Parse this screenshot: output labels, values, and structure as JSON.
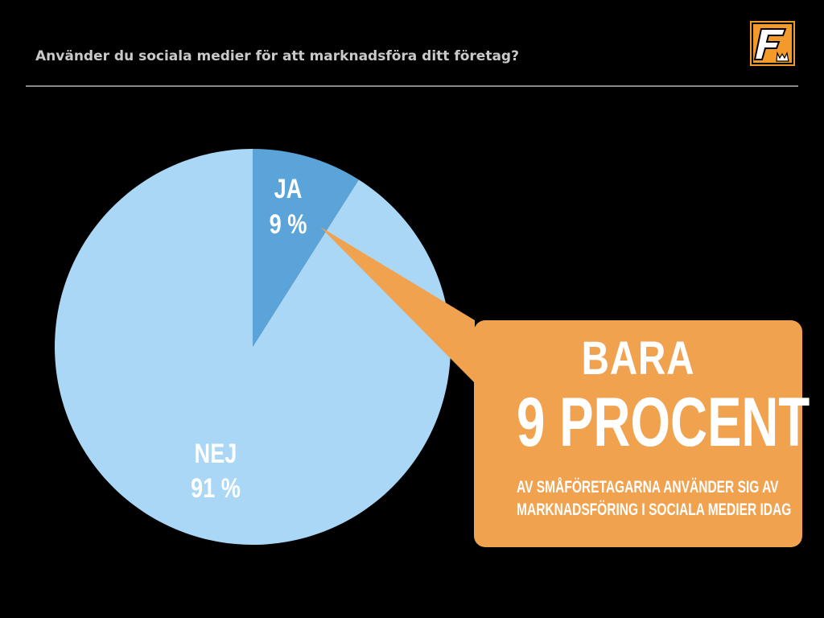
{
  "slide": {
    "title": "Använder du sociala medier för att marknadsföra ditt företag?"
  },
  "logo": {
    "icon": "brand-f-logo-icon",
    "bg_color": "#f39a2b",
    "letter": "F"
  },
  "chart_data": {
    "type": "pie",
    "title": "Använder du sociala medier för att marknadsföra ditt företag?",
    "categories": [
      "JA",
      "NEJ"
    ],
    "values": [
      9,
      91
    ],
    "value_labels": [
      "9 %",
      "91 %"
    ],
    "colors": [
      "#5aa4d9",
      "#a9d7f5"
    ],
    "start_angle_deg": 0,
    "direction": "clockwise",
    "legend": "none"
  },
  "callout": {
    "color": "#f0a24e",
    "line1": "BARA",
    "line2": "9 PROCENT",
    "line3a": "AV SMÅFÖRETAGARNA ANVÄNDER SIG AV",
    "line3b": "MARKNADSFÖRING I SOCIALA MEDIER IDAG"
  }
}
